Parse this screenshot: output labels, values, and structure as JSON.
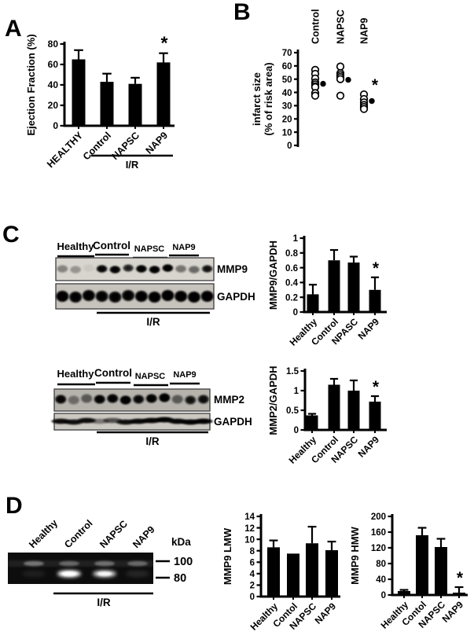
{
  "figure": {
    "panels": [
      {
        "id": "A",
        "label": "A"
      },
      {
        "id": "B",
        "label": "B"
      },
      {
        "id": "C",
        "label": "C"
      },
      {
        "id": "D",
        "label": "D"
      }
    ]
  },
  "chart_data": [
    {
      "id": "ejection-fraction",
      "panel": "A",
      "type": "bar",
      "ylabel": "Ejection Fraction (%)",
      "ylim": [
        0,
        80
      ],
      "yticks": [
        0,
        20,
        40,
        60,
        80
      ],
      "ytick_labels": [
        "0",
        "20",
        "40",
        "60",
        "80"
      ],
      "categories": [
        "HEALTHY",
        "Control",
        "NAPSC",
        "NAP9"
      ],
      "values": [
        65,
        43,
        41,
        62
      ],
      "errors": [
        9,
        8,
        6,
        9
      ],
      "bar_color": "#000000",
      "sig": {
        "index": 3,
        "symbol": "*"
      },
      "group_line": {
        "from": 1,
        "to": 3,
        "label": "I/R"
      }
    },
    {
      "id": "infarct-size",
      "panel": "B",
      "type": "scatter",
      "ylabel_lines": [
        "infarct size",
        "(% of risk area)"
      ],
      "ylim": [
        0,
        70
      ],
      "yticks": [
        0,
        10,
        20,
        30,
        40,
        50,
        60,
        70
      ],
      "ytick_labels": [
        "0",
        "10",
        "20",
        "30",
        "40",
        "50",
        "60",
        "70"
      ],
      "groups": [
        {
          "label": "Control",
          "points": [
            57,
            54,
            50.5,
            47.5,
            46,
            44.5,
            44,
            39.5,
            37.5
          ],
          "mean": 46.5
        },
        {
          "label": "NAPSC",
          "points": [
            59.5,
            54.5,
            53,
            51.5,
            50,
            37.5
          ],
          "mean": 49.5
        },
        {
          "label": "NAP9",
          "points": [
            38.5,
            35,
            32.5,
            30.5,
            29,
            27.5
          ],
          "mean": 33.5,
          "sig": "*"
        }
      ]
    },
    {
      "id": "mmp9-gapdh",
      "panel": "C",
      "type": "bar",
      "ylabel": "MMP9/GAPDH",
      "ylim": [
        0,
        1
      ],
      "yticks": [
        0,
        0.2,
        0.4,
        0.6,
        0.8,
        1
      ],
      "ytick_labels": [
        "0",
        "0.2",
        "0.4",
        "0.6",
        "0.8",
        "1"
      ],
      "categories": [
        "Healthy",
        "Control",
        "NPASC",
        "NAP9"
      ],
      "values": [
        0.24,
        0.7,
        0.67,
        0.3
      ],
      "errors": [
        0.13,
        0.14,
        0.08,
        0.17
      ],
      "bar_color": "#000000",
      "sig": {
        "index": 3,
        "symbol": "*"
      }
    },
    {
      "id": "mmp2-gapdh",
      "panel": "C",
      "type": "bar",
      "ylabel": "MMP2/GAPDH",
      "ylim": [
        0,
        1.5
      ],
      "yticks": [
        0,
        0.5,
        1,
        1.5
      ],
      "ytick_labels": [
        "0",
        "0.5",
        "1",
        "1.5"
      ],
      "categories": [
        "Healthy",
        "Control",
        "NAPSC",
        "NAP9"
      ],
      "values": [
        0.37,
        1.15,
        1.0,
        0.72
      ],
      "errors": [
        0.04,
        0.15,
        0.26,
        0.14
      ],
      "bar_color": "#000000",
      "sig": {
        "index": 3,
        "symbol": "*"
      }
    },
    {
      "id": "mmp9-lmw",
      "panel": "D",
      "type": "bar",
      "ylabel": "MMP9 LMW",
      "ylim": [
        0,
        14
      ],
      "yticks": [
        0,
        2,
        4,
        6,
        8,
        10,
        12,
        14
      ],
      "ytick_labels": [
        "0",
        "2",
        "4",
        "6",
        "8",
        "10",
        "12",
        "14"
      ],
      "categories": [
        "Healthy",
        "Contol",
        "NAPSC",
        "NAP9"
      ],
      "values": [
        8.6,
        7.5,
        9.3,
        8.1
      ],
      "errors": [
        1.2,
        0,
        2.9,
        1.5
      ],
      "bar_color": "#000000"
    },
    {
      "id": "mmp9-hmw",
      "panel": "D",
      "type": "bar",
      "ylabel": "MMP9 HMW",
      "ylim": [
        0,
        200
      ],
      "yticks": [
        0,
        40,
        80,
        120,
        160,
        200
      ],
      "ytick_labels": [
        "0",
        "40",
        "80",
        "120",
        "160",
        "200"
      ],
      "categories": [
        "Healthy",
        "Contol",
        "NAPSC",
        "NAP9"
      ],
      "values": [
        10,
        152,
        122,
        6
      ],
      "errors": [
        3,
        19,
        21,
        14
      ],
      "bar_color": "#000000",
      "sig": {
        "index": 3,
        "symbol": "*"
      }
    }
  ],
  "blots": [
    {
      "id": "western-mmp9",
      "group_labels": [
        "Healthy",
        "Control",
        "NAPSC",
        "NAP9"
      ],
      "ir_label": "I/R",
      "rows": [
        {
          "label": "MMP9",
          "band_intensities": [
            0.38,
            0.3,
            0.06,
            0.85,
            0.9,
            0.62,
            0.92,
            0.95,
            0.95,
            0.45,
            0.5,
            0.72
          ]
        },
        {
          "label": "GAPDH",
          "band_intensities": [
            0.95,
            0.9,
            0.92,
            0.88,
            0.9,
            0.88,
            0.94,
            0.95,
            0.97,
            0.95,
            0.96,
            0.95
          ]
        }
      ]
    },
    {
      "id": "western-mmp2",
      "group_labels": [
        "Healthy",
        "Control",
        "NAPSC",
        "NAP9"
      ],
      "ir_label": "I/R",
      "rows": [
        {
          "label": "MMP2",
          "band_intensities": [
            0.85,
            0.4,
            0.5,
            0.9,
            0.9,
            0.95,
            0.8,
            0.9,
            0.95,
            0.5,
            0.7,
            0.75
          ]
        },
        {
          "label": "GAPDH",
          "band_intensities": [
            0.8,
            0.75,
            0.78,
            0.4,
            0.6,
            0.75,
            0.82,
            0.85,
            0.9,
            0.85,
            0.88,
            0.9
          ]
        }
      ]
    }
  ],
  "gel": {
    "id": "zymography",
    "lane_labels": [
      "Healthy",
      "Control",
      "NAPSC",
      "NAP9"
    ],
    "kda_label": "kDa",
    "markers": [
      "100",
      "80"
    ],
    "ir_label": "I/R",
    "top_band_intensities": [
      0.38,
      0.32,
      0.36,
      0.33
    ],
    "bottom_band_intensities": [
      0.07,
      1.0,
      0.8,
      0.1
    ],
    "gel_bg": "#0d0d0d"
  },
  "colors": {
    "ink": "#000000",
    "background": "#ffffff",
    "blot_bg_dark": "#b6b3ad",
    "blot_bg_light": "#d8d4ce"
  }
}
